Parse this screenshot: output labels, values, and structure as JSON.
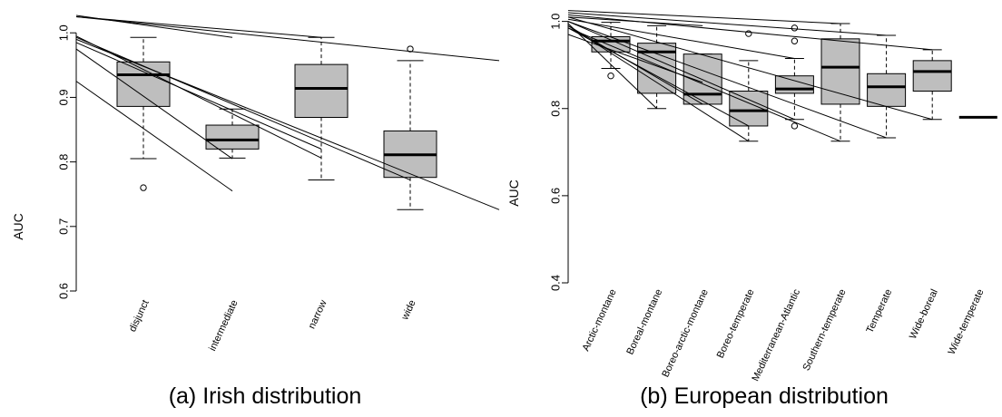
{
  "chart_data": [
    {
      "type": "boxplot",
      "title": "(a) Irish distribution",
      "ylabel": "AUC",
      "ylim": [
        0.6,
        1.02
      ],
      "yticks": [
        "0.6",
        "0.7",
        "0.8",
        "0.9",
        "1.0"
      ],
      "categories": [
        "disjunct",
        "intermediate",
        "narrow",
        "wide"
      ],
      "boxes": [
        {
          "q1": 0.886,
          "median": 0.935,
          "q3": 0.955,
          "whisker_low": 0.805,
          "whisker_high": 0.993,
          "outliers": [
            0.76
          ]
        },
        {
          "q1": 0.82,
          "median": 0.834,
          "q3": 0.857,
          "whisker_low": 0.806,
          "whisker_high": 0.882,
          "outliers": []
        },
        {
          "q1": 0.869,
          "median": 0.914,
          "q3": 0.951,
          "whisker_low": 0.772,
          "whisker_high": 0.993,
          "outliers": []
        },
        {
          "q1": 0.776,
          "median": 0.811,
          "q3": 0.848,
          "whisker_low": 0.726,
          "whisker_high": 0.957,
          "outliers": [
            0.975
          ]
        }
      ],
      "lines": [
        {
          "x": [
            0,
            1
          ],
          "y": [
            1.027,
            0.993
          ]
        },
        {
          "x": [
            0,
            2
          ],
          "y": [
            1.025,
            0.993
          ]
        },
        {
          "x": [
            0,
            4
          ],
          "y": [
            1.025,
            0.957
          ]
        },
        {
          "x": [
            0,
            2
          ],
          "y": [
            0.995,
            0.806
          ]
        },
        {
          "x": [
            0,
            3
          ],
          "y": [
            0.993,
            0.772
          ]
        },
        {
          "x": [
            0,
            4
          ],
          "y": [
            0.99,
            0.726
          ]
        },
        {
          "x": [
            0,
            2
          ],
          "y": [
            0.985,
            0.82
          ]
        },
        {
          "x": [
            0,
            1
          ],
          "y": [
            0.975,
            0.805
          ]
        },
        {
          "x": [
            0,
            1
          ],
          "y": [
            0.925,
            0.755
          ]
        }
      ]
    },
    {
      "type": "boxplot",
      "title": "(b) European distribution",
      "ylabel": "AUC",
      "ylim": [
        0.4,
        1.02
      ],
      "yticks": [
        "0.4",
        "0.6",
        "0.8",
        "1.0"
      ],
      "categories": [
        "Arctic-montane",
        "Boreal-montane",
        "Boreo-arctic-montane",
        "Boreo-temperate",
        "Mediterranean-Atlantic",
        "Southern-temperate",
        "Temperate",
        "Wide-boreal",
        "Wide-temperate"
      ],
      "boxes": [
        {
          "q1": 0.93,
          "median": 0.955,
          "q3": 0.965,
          "whisker_low": 0.892,
          "whisker_high": 0.998,
          "outliers": [
            0.875
          ]
        },
        {
          "q1": 0.835,
          "median": 0.93,
          "q3": 0.95,
          "whisker_low": 0.8,
          "whisker_high": 0.99,
          "outliers": []
        },
        {
          "q1": 0.81,
          "median": 0.833,
          "q3": 0.925,
          "whisker_low": 0.81,
          "whisker_high": 0.925,
          "outliers": []
        },
        {
          "q1": 0.76,
          "median": 0.795,
          "q3": 0.84,
          "whisker_low": 0.725,
          "whisker_high": 0.91,
          "outliers": [
            0.972
          ]
        },
        {
          "q1": 0.835,
          "median": 0.845,
          "q3": 0.875,
          "whisker_low": 0.775,
          "whisker_high": 0.915,
          "outliers": [
            0.76,
            0.955,
            0.985
          ]
        },
        {
          "q1": 0.81,
          "median": 0.895,
          "q3": 0.96,
          "whisker_low": 0.725,
          "whisker_high": 0.995,
          "outliers": []
        },
        {
          "q1": 0.805,
          "median": 0.85,
          "q3": 0.88,
          "whisker_low": 0.733,
          "whisker_high": 0.968,
          "outliers": []
        },
        {
          "q1": 0.84,
          "median": 0.885,
          "q3": 0.91,
          "whisker_low": 0.775,
          "whisker_high": 0.935,
          "outliers": []
        },
        {
          "q1": 0.78,
          "median": 0.78,
          "q3": 0.78,
          "whisker_low": 0.78,
          "whisker_high": 0.78,
          "outliers": []
        }
      ],
      "lines": [
        {
          "x": [
            0,
            5
          ],
          "y": [
            1.025,
            0.995
          ]
        },
        {
          "x": [
            0,
            6
          ],
          "y": [
            1.02,
            0.968
          ]
        },
        {
          "x": [
            0,
            7
          ],
          "y": [
            1.015,
            0.935
          ]
        },
        {
          "x": [
            0,
            2
          ],
          "y": [
            1.01,
            0.99
          ]
        },
        {
          "x": [
            0,
            6
          ],
          "y": [
            1.0,
            0.733
          ]
        },
        {
          "x": [
            0,
            7
          ],
          "y": [
            1.01,
            0.775
          ]
        },
        {
          "x": [
            0,
            4
          ],
          "y": [
            1.005,
            0.915
          ]
        },
        {
          "x": [
            0,
            5
          ],
          "y": [
            0.985,
            0.725
          ]
        },
        {
          "x": [
            0,
            4
          ],
          "y": [
            1.0,
            0.775
          ]
        },
        {
          "x": [
            0,
            3
          ],
          "y": [
            0.99,
            0.725
          ]
        },
        {
          "x": [
            0,
            2
          ],
          "y": [
            0.99,
            0.81
          ]
        },
        {
          "x": [
            0,
            1
          ],
          "y": [
            0.995,
            0.8
          ]
        },
        {
          "x": [
            0,
            3
          ],
          "y": [
            0.985,
            0.76
          ]
        },
        {
          "x": [
            0,
            2
          ],
          "y": [
            0.97,
            0.86
          ]
        }
      ]
    }
  ]
}
